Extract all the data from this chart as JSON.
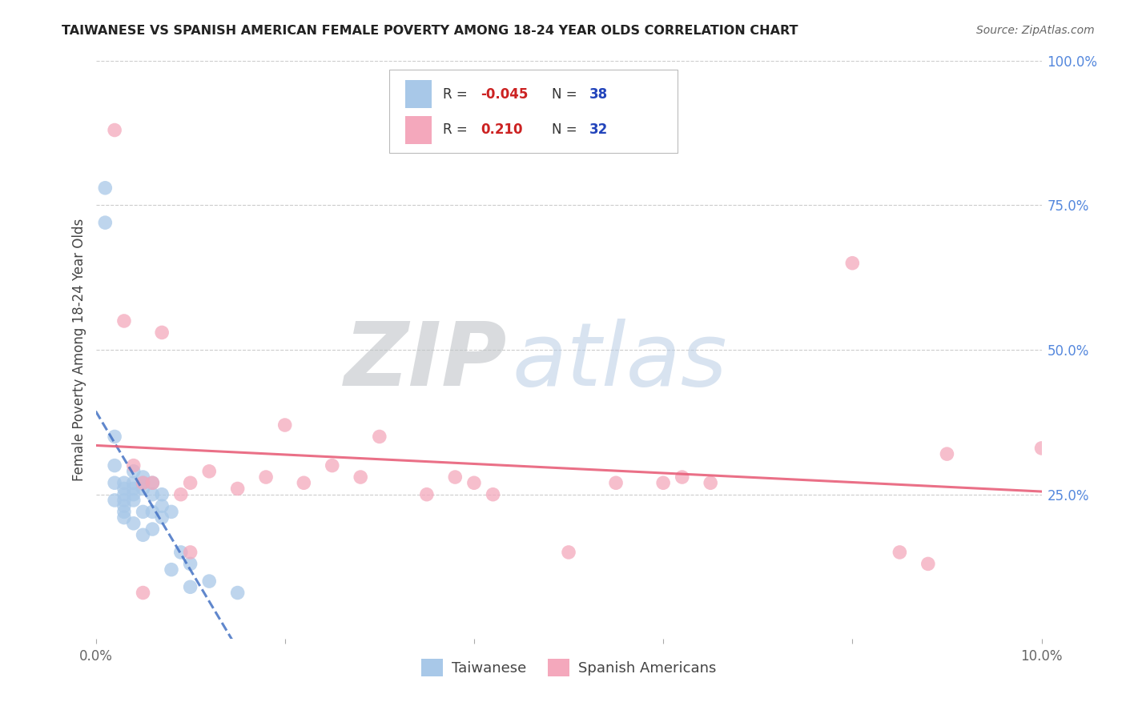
{
  "title": "TAIWANESE VS SPANISH AMERICAN FEMALE POVERTY AMONG 18-24 YEAR OLDS CORRELATION CHART",
  "source": "Source: ZipAtlas.com",
  "ylabel": "Female Poverty Among 18-24 Year Olds",
  "xlim": [
    0.0,
    0.1
  ],
  "ylim": [
    0.0,
    1.0
  ],
  "x_tick_positions": [
    0.0,
    0.02,
    0.04,
    0.06,
    0.08,
    0.1
  ],
  "x_tick_labels": [
    "0.0%",
    "",
    "",
    "",
    "",
    "10.0%"
  ],
  "y_tick_positions": [
    0.0,
    0.25,
    0.5,
    0.75,
    1.0
  ],
  "right_y_tick_labels": [
    "",
    "25.0%",
    "50.0%",
    "75.0%",
    "100.0%"
  ],
  "taiwanese_R": -0.045,
  "taiwanese_N": 38,
  "spanish_R": 0.21,
  "spanish_N": 32,
  "taiwanese_color": "#a8c8e8",
  "spanish_color": "#f4a8bc",
  "taiwanese_line_color": "#4472c4",
  "spanish_line_color": "#e8607a",
  "watermark_zip_color": "#c8cdd2",
  "watermark_atlas_color": "#b8cce4",
  "grid_color": "#cccccc",
  "background_color": "#ffffff",
  "legend_r_color": "#cc2222",
  "legend_n_color": "#2244bb",
  "taiwanese_x": [
    0.001,
    0.001,
    0.002,
    0.002,
    0.002,
    0.002,
    0.003,
    0.003,
    0.003,
    0.003,
    0.003,
    0.003,
    0.003,
    0.004,
    0.004,
    0.004,
    0.004,
    0.004,
    0.004,
    0.005,
    0.005,
    0.005,
    0.005,
    0.005,
    0.006,
    0.006,
    0.006,
    0.006,
    0.007,
    0.007,
    0.007,
    0.008,
    0.008,
    0.009,
    0.01,
    0.01,
    0.012,
    0.015
  ],
  "taiwanese_y": [
    0.78,
    0.72,
    0.35,
    0.3,
    0.27,
    0.24,
    0.27,
    0.26,
    0.25,
    0.24,
    0.23,
    0.22,
    0.21,
    0.29,
    0.27,
    0.26,
    0.25,
    0.24,
    0.2,
    0.28,
    0.27,
    0.26,
    0.22,
    0.18,
    0.27,
    0.25,
    0.22,
    0.19,
    0.25,
    0.23,
    0.21,
    0.22,
    0.12,
    0.15,
    0.13,
    0.09,
    0.1,
    0.08
  ],
  "spanish_x": [
    0.002,
    0.003,
    0.004,
    0.005,
    0.005,
    0.006,
    0.007,
    0.009,
    0.01,
    0.01,
    0.012,
    0.015,
    0.018,
    0.02,
    0.022,
    0.025,
    0.028,
    0.03,
    0.035,
    0.038,
    0.04,
    0.042,
    0.05,
    0.055,
    0.06,
    0.062,
    0.065,
    0.08,
    0.085,
    0.088,
    0.09,
    0.1
  ],
  "spanish_y": [
    0.88,
    0.55,
    0.3,
    0.08,
    0.27,
    0.27,
    0.53,
    0.25,
    0.27,
    0.15,
    0.29,
    0.26,
    0.28,
    0.37,
    0.27,
    0.3,
    0.28,
    0.35,
    0.25,
    0.28,
    0.27,
    0.25,
    0.15,
    0.27,
    0.27,
    0.28,
    0.27,
    0.65,
    0.15,
    0.13,
    0.32,
    0.33
  ]
}
